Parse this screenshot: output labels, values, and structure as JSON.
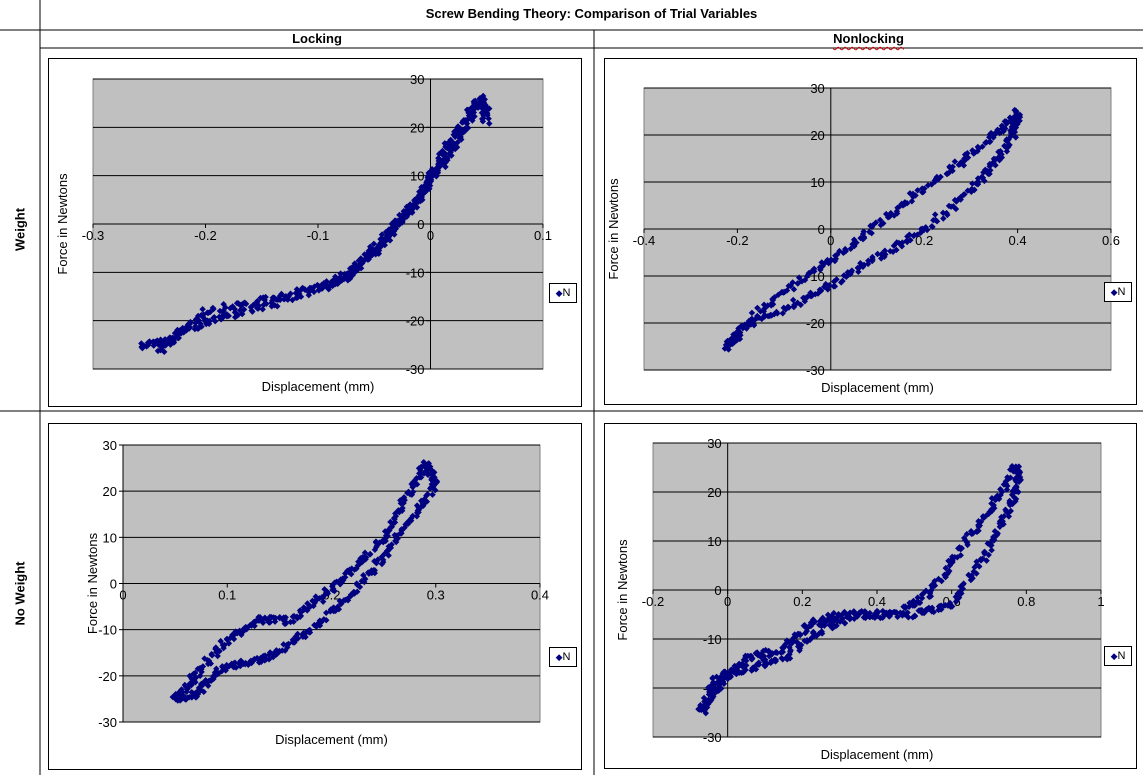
{
  "table": {
    "title": "Screw Bending Theory: Comparison of Trial Variables",
    "col_headers": [
      "Locking",
      "Nonlocking"
    ],
    "row_headers": [
      "Weight",
      "No Weight"
    ]
  },
  "colors": {
    "plot_bg": "#c0c0c0",
    "marker": "#000080",
    "gridline": "#000000"
  },
  "chart_data": [
    {
      "id": "locking-weight",
      "type": "scatter",
      "xlabel": "Displacement (mm)",
      "ylabel": "Force in Newtons",
      "xlim": [
        -0.3,
        0.1
      ],
      "ylim": [
        -30,
        30
      ],
      "xticks": [
        "-0.3",
        "-0.2",
        "-0.1",
        "0",
        "0.1"
      ],
      "yticks": [
        "30",
        "20",
        "10",
        "0",
        "-10",
        "-20",
        "-30"
      ],
      "xtick_values": [
        -0.3,
        -0.2,
        -0.1,
        0,
        0.1
      ],
      "ytick_values": [
        30,
        20,
        10,
        0,
        -10,
        -20,
        -30
      ],
      "legend": "N",
      "series": [
        {
          "name": "N",
          "paths": [
            {
              "kind": "line",
              "points": [
                [
                  -0.258,
                  -25
                ],
                [
                  -0.23,
                  -24
                ],
                [
                  -0.2,
                  -18
                ],
                [
                  -0.15,
                  -16
                ],
                [
                  -0.1,
                  -13
                ],
                [
                  -0.07,
                  -10
                ],
                [
                  -0.05,
                  -5
                ],
                [
                  -0.03,
                  0
                ],
                [
                  -0.01,
                  5
                ],
                [
                  0.005,
                  12
                ],
                [
                  0.02,
                  18
                ],
                [
                  0.04,
                  25
                ],
                [
                  0.05,
                  24
                ]
              ]
            },
            {
              "kind": "line",
              "points": [
                [
                  -0.24,
                  -26
                ],
                [
                  -0.22,
                  -22
                ],
                [
                  -0.18,
                  -19
                ],
                [
                  -0.13,
                  -16
                ],
                [
                  -0.08,
                  -12
                ],
                [
                  -0.055,
                  -7
                ],
                [
                  -0.035,
                  -2
                ],
                [
                  -0.015,
                  4
                ],
                [
                  0,
                  9
                ],
                [
                  0.015,
                  14
                ],
                [
                  0.03,
                  20
                ],
                [
                  0.045,
                  26
                ],
                [
                  0.05,
                  21
                ]
              ]
            }
          ]
        }
      ]
    },
    {
      "id": "nonlocking-weight",
      "type": "scatter",
      "xlabel": "Displacement (mm)",
      "ylabel": "Force in Newtons",
      "xlim": [
        -0.4,
        0.6
      ],
      "ylim": [
        -30,
        30
      ],
      "xticks": [
        "-0.4",
        "-0.2",
        "0",
        "0.2",
        "0.4",
        "0.6"
      ],
      "yticks": [
        "30",
        "20",
        "10",
        "0",
        "-10",
        "-20",
        "-30"
      ],
      "xtick_values": [
        -0.4,
        -0.2,
        0,
        0.2,
        0.4,
        0.6
      ],
      "ytick_values": [
        30,
        20,
        10,
        0,
        -10,
        -20,
        -30
      ],
      "legend": "N",
      "series": [
        {
          "name": "N",
          "paths": [
            {
              "kind": "loop",
              "points": [
                [
                  -0.22,
                  -25
                ],
                [
                  -0.15,
                  -17
                ],
                [
                  -0.05,
                  -10
                ],
                [
                  0.05,
                  -3
                ],
                [
                  0.15,
                  5
                ],
                [
                  0.25,
                  12
                ],
                [
                  0.33,
                  18
                ],
                [
                  0.4,
                  25
                ],
                [
                  0.39,
                  20
                ],
                [
                  0.35,
                  14
                ],
                [
                  0.3,
                  8
                ],
                [
                  0.2,
                  0
                ],
                [
                  0.1,
                  -6
                ],
                [
                  0,
                  -12
                ],
                [
                  -0.1,
                  -17
                ],
                [
                  -0.2,
                  -22
                ],
                [
                  -0.22,
                  -25
                ]
              ]
            }
          ]
        }
      ]
    },
    {
      "id": "locking-noweight",
      "type": "scatter",
      "xlabel": "Displacement (mm)",
      "ylabel": "Force in Newtons",
      "xlim": [
        0,
        0.4
      ],
      "ylim": [
        -30,
        30
      ],
      "xticks": [
        "0",
        "0.1",
        "0.2",
        "0.3",
        "0.4"
      ],
      "yticks": [
        "30",
        "20",
        "10",
        "0",
        "-10",
        "-20",
        "-30"
      ],
      "xtick_values": [
        0,
        0.1,
        0.2,
        0.3,
        0.4
      ],
      "ytick_values": [
        30,
        20,
        10,
        0,
        -10,
        -20,
        -30
      ],
      "legend": "N",
      "series": [
        {
          "name": "N",
          "paths": [
            {
              "kind": "loop",
              "points": [
                [
                  0.05,
                  -25
                ],
                [
                  0.07,
                  -20
                ],
                [
                  0.1,
                  -12
                ],
                [
                  0.13,
                  -8
                ],
                [
                  0.16,
                  -8
                ],
                [
                  0.19,
                  -3
                ],
                [
                  0.22,
                  3
                ],
                [
                  0.25,
                  10
                ],
                [
                  0.27,
                  18
                ],
                [
                  0.29,
                  26
                ],
                [
                  0.3,
                  22
                ],
                [
                  0.28,
                  15
                ],
                [
                  0.25,
                  6
                ],
                [
                  0.22,
                  -2
                ],
                [
                  0.18,
                  -10
                ],
                [
                  0.15,
                  -15
                ],
                [
                  0.12,
                  -17
                ],
                [
                  0.09,
                  -19
                ],
                [
                  0.07,
                  -24
                ],
                [
                  0.05,
                  -25
                ]
              ]
            }
          ]
        }
      ]
    },
    {
      "id": "nonlocking-noweight",
      "type": "scatter",
      "xlabel": "Displacement (mm)",
      "ylabel": "Force in Newtons",
      "xlim": [
        -0.2,
        1.0
      ],
      "ylim": [
        -30,
        30
      ],
      "xticks": [
        "-0.2",
        "0",
        "0.2",
        "0.4",
        "0.6",
        "0.8",
        "1"
      ],
      "yticks": [
        "30",
        "20",
        "10",
        "0",
        "-10",
        "-20",
        "-30"
      ],
      "xtick_values": [
        -0.2,
        0,
        0.2,
        0.4,
        0.6,
        0.8,
        1.0
      ],
      "ytick_values": [
        30,
        20,
        10,
        0,
        -10,
        -20,
        -30
      ],
      "legend": "N",
      "series": [
        {
          "name": "N",
          "paths": [
            {
              "kind": "loop",
              "points": [
                [
                  -0.07,
                  -25
                ],
                [
                  -0.03,
                  -20
                ],
                [
                  0.05,
                  -14
                ],
                [
                  0.15,
                  -12
                ],
                [
                  0.22,
                  -7
                ],
                [
                  0.3,
                  -5
                ],
                [
                  0.45,
                  -5
                ],
                [
                  0.55,
                  0
                ],
                [
                  0.62,
                  8
                ],
                [
                  0.7,
                  16
                ],
                [
                  0.77,
                  25
                ],
                [
                  0.78,
                  22
                ],
                [
                  0.74,
                  14
                ],
                [
                  0.68,
                  6
                ],
                [
                  0.6,
                  -3
                ],
                [
                  0.5,
                  -5
                ],
                [
                  0.35,
                  -5
                ],
                [
                  0.25,
                  -8
                ],
                [
                  0.15,
                  -14
                ],
                [
                  0.05,
                  -16
                ],
                [
                  -0.03,
                  -18
                ],
                [
                  -0.07,
                  -25
                ]
              ]
            }
          ]
        }
      ]
    }
  ]
}
